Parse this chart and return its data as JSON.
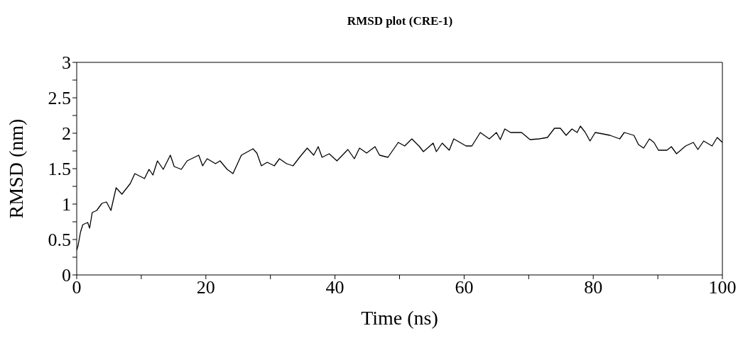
{
  "chart_data": {
    "type": "line",
    "title": "RMSD plot (CRE-1)",
    "xlabel": "Time (ns)",
    "ylabel": "RMSD (nm)",
    "xlim": [
      0,
      100
    ],
    "ylim": [
      0,
      3
    ],
    "xticks": [
      0,
      {
        "value": 10,
        "label": null
      },
      20,
      {
        "value": 30,
        "label": null
      },
      40,
      {
        "value": 50,
        "label": null
      },
      60,
      {
        "value": 70,
        "label": null
      },
      80,
      {
        "value": 90,
        "label": null
      },
      100
    ],
    "yticks": [
      0,
      {
        "value": 0.25,
        "label": null
      },
      0.5,
      {
        "value": 0.75,
        "label": null
      },
      1,
      {
        "value": 1.25,
        "label": null
      },
      1.5,
      {
        "value": 1.75,
        "label": null
      },
      2,
      {
        "value": 2.25,
        "label": null
      },
      2.5,
      {
        "value": 2.75,
        "label": null
      },
      3
    ],
    "marker": "none",
    "line_style": "solid",
    "series": [
      {
        "color": "#000000",
        "x": [
          0,
          0.2,
          0.6,
          0.95,
          1.7,
          2.0,
          2.4,
          3.1,
          3.9,
          4.6,
          5.3,
          6.1,
          7.0,
          8.3,
          9.0,
          10.5,
          11.2,
          11.8,
          12.5,
          13.4,
          14.5,
          15.1,
          16.2,
          17.1,
          18.9,
          19.5,
          20.2,
          21.5,
          22.2,
          23.3,
          24.2,
          25.5,
          27.3,
          27.9,
          28.6,
          29.5,
          30.6,
          31.4,
          32.5,
          33.5,
          34.6,
          35.7,
          36.7,
          37.4,
          38.0,
          39.1,
          40.3,
          42.0,
          43.0,
          43.8,
          44.9,
          46.2,
          46.9,
          48.2,
          49.8,
          50.8,
          51.9,
          53.0,
          53.7,
          55.2,
          55.7,
          56.6,
          57.7,
          58.4,
          60.3,
          61.2,
          62.5,
          63.9,
          65.0,
          65.6,
          66.3,
          67.2,
          68.9,
          70.2,
          71.6,
          72.9,
          74.0,
          74.9,
          75.8,
          76.7,
          77.5,
          78.0,
          78.7,
          79.5,
          80.3,
          81.5,
          82.6,
          84.1,
          84.8,
          86.3,
          87.0,
          87.8,
          88.7,
          89.4,
          90.1,
          91.4,
          92.1,
          92.9,
          94.3,
          95.5,
          96.2,
          97.1,
          98.4,
          99.2,
          100
        ],
        "values": [
          0.35,
          0.41,
          0.61,
          0.71,
          0.74,
          0.66,
          0.88,
          0.91,
          1.01,
          1.03,
          0.91,
          1.23,
          1.14,
          1.29,
          1.43,
          1.36,
          1.49,
          1.41,
          1.61,
          1.49,
          1.69,
          1.53,
          1.49,
          1.61,
          1.69,
          1.54,
          1.64,
          1.57,
          1.61,
          1.49,
          1.43,
          1.69,
          1.78,
          1.72,
          1.54,
          1.59,
          1.54,
          1.64,
          1.57,
          1.54,
          1.67,
          1.79,
          1.69,
          1.81,
          1.66,
          1.71,
          1.61,
          1.77,
          1.64,
          1.79,
          1.72,
          1.81,
          1.69,
          1.66,
          1.87,
          1.82,
          1.92,
          1.82,
          1.74,
          1.86,
          1.74,
          1.86,
          1.76,
          1.92,
          1.82,
          1.82,
          2.01,
          1.92,
          2.01,
          1.91,
          2.06,
          2.01,
          2.01,
          1.91,
          1.92,
          1.94,
          2.07,
          2.07,
          1.97,
          2.06,
          2.01,
          2.1,
          2.02,
          1.89,
          2.01,
          1.99,
          1.97,
          1.92,
          2.01,
          1.97,
          1.84,
          1.79,
          1.92,
          1.87,
          1.76,
          1.76,
          1.81,
          1.71,
          1.82,
          1.87,
          1.77,
          1.89,
          1.82,
          1.94,
          1.87
        ]
      }
    ]
  }
}
